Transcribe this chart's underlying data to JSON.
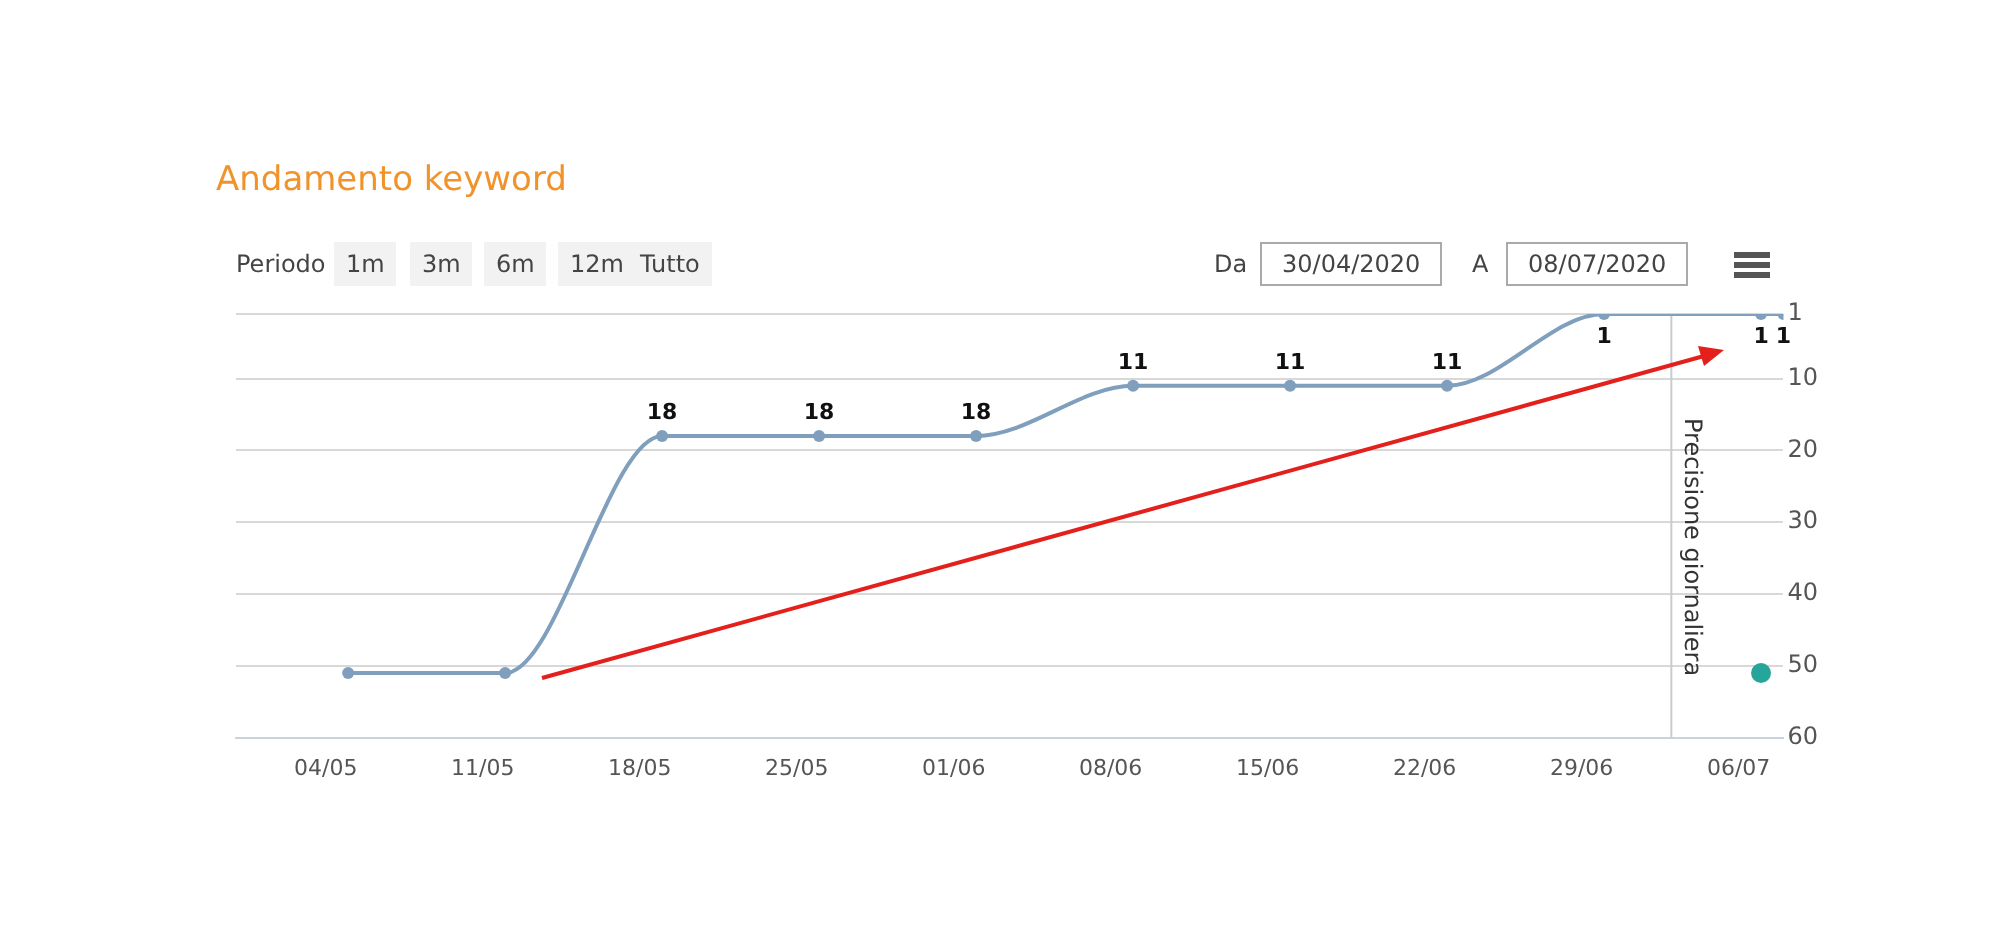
{
  "chart_data": {
    "type": "line",
    "title": "Andamento keyword",
    "annotations": [
      "Periodo",
      "1m",
      "3m",
      "6m",
      "12m",
      "Tutto",
      "Da",
      "30/04/2020",
      "A",
      "08/07/2020"
    ],
    "xlim": [
      "2020-04-30",
      "2020-07-08"
    ],
    "xticks": [
      {
        "value": "2020-05-04",
        "label": "04/05"
      },
      {
        "value": "2020-05-11",
        "label": "11/05"
      },
      {
        "value": "2020-05-18",
        "label": "18/05"
      },
      {
        "value": "2020-05-25",
        "label": "25/05"
      },
      {
        "value": "2020-06-01",
        "label": "01/06"
      },
      {
        "value": "2020-06-08",
        "label": "08/06"
      },
      {
        "value": "2020-06-15",
        "label": "15/06"
      },
      {
        "value": "2020-06-22",
        "label": "22/06"
      },
      {
        "value": "2020-06-29",
        "label": "29/06"
      },
      {
        "value": "2020-07-06",
        "label": "06/07"
      }
    ],
    "ylim": [
      60,
      1
    ],
    "yticks": [
      1,
      10,
      20,
      30,
      40,
      50,
      60
    ],
    "grid": "y",
    "marker": "circle",
    "legend": false,
    "series": [
      {
        "color": "#7f9fbd",
        "x": [
          "2020-05-05",
          "2020-05-12",
          "2020-05-19",
          "2020-05-26",
          "2020-06-02",
          "2020-06-09",
          "2020-06-16",
          "2020-06-23",
          "2020-06-30",
          "2020-07-07",
          "2020-07-08"
        ],
        "values": [
          51,
          51,
          18,
          18,
          18,
          11,
          11,
          11,
          1,
          1,
          1
        ],
        "value_labels": [
          null,
          null,
          "18",
          "18",
          "18",
          "11",
          "11",
          "11",
          "1",
          "1",
          "1"
        ]
      },
      {
        "type": "scatter",
        "color": "#26a69a",
        "x": [
          "2020-07-07"
        ],
        "values": [
          51
        ]
      }
    ],
    "ref_lines": [
      {
        "axis": "x",
        "value": "2020-07-03",
        "label": "Precisione giornaliera",
        "color": "#c8ccd0"
      }
    ]
  }
}
